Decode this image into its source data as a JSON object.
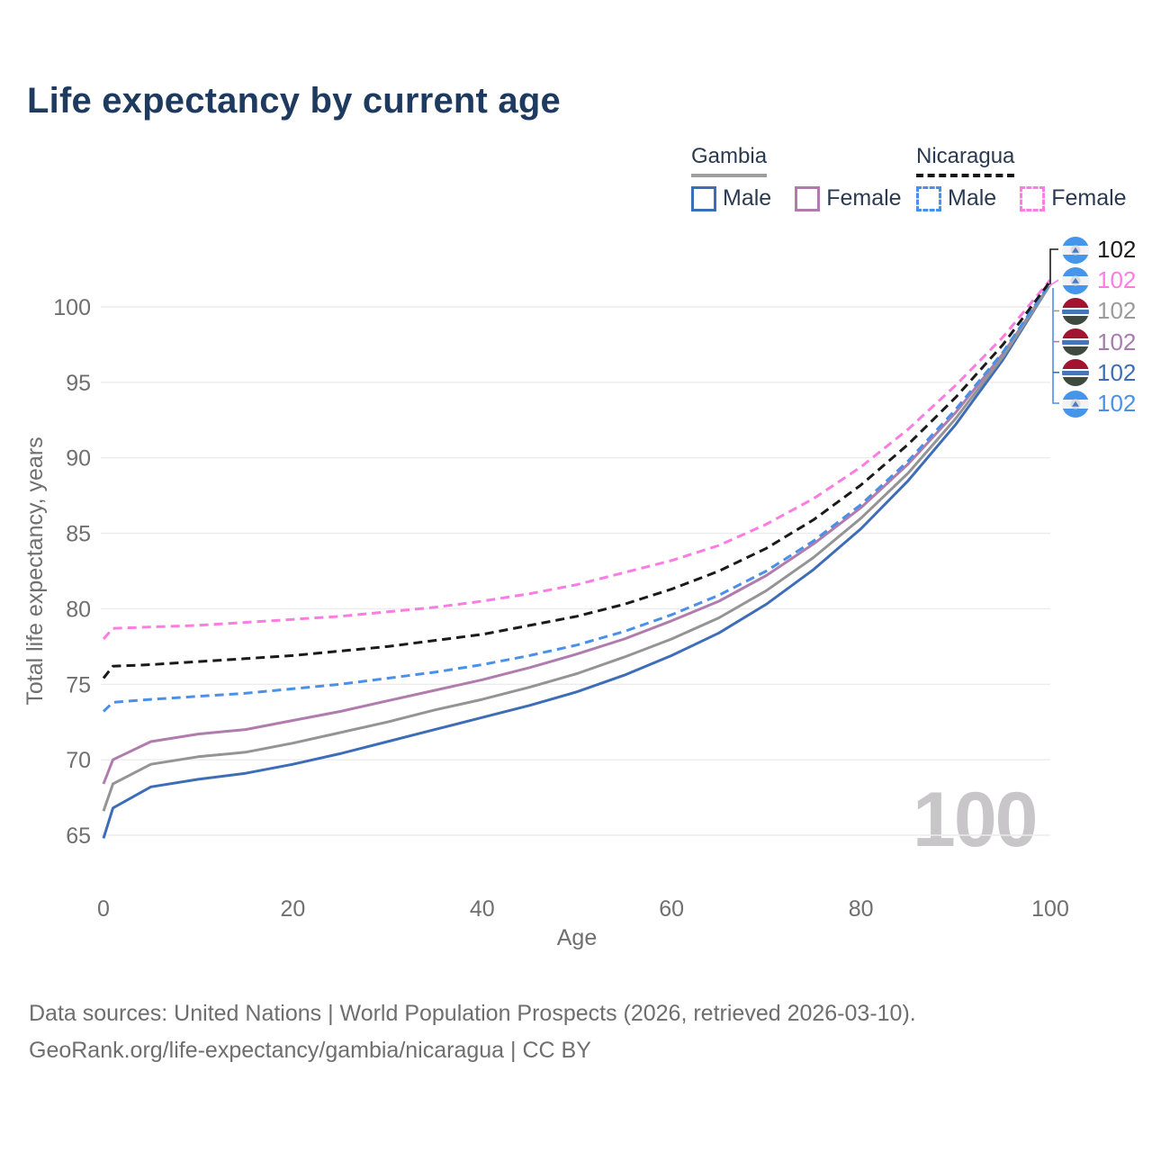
{
  "title": "Life expectancy by current age",
  "legend": {
    "groups": [
      {
        "title": "Gambia",
        "style": "solid",
        "items": [
          {
            "label": "Male",
            "color": "#3E6DB8"
          },
          {
            "label": "Female",
            "color": "#B279AE"
          }
        ]
      },
      {
        "title": "Nicaragua",
        "style": "dashed",
        "items": [
          {
            "label": "Male",
            "color": "#4A90E8"
          },
          {
            "label": "Female",
            "color": "#FC7CE2"
          }
        ]
      }
    ]
  },
  "watermark": "100",
  "footer": {
    "line1": "Data sources: United Nations | World Population Prospects (2026, retrieved 2026-03-10).",
    "line2": "GeoRank.org/life-expectancy/gambia/nicaragua | CC BY"
  },
  "colors": {
    "title": "#1E3A5F",
    "tick_labels": "#6F6F6F",
    "gridlines": "#ECECEC",
    "watermark": "#C9C6C9",
    "footer": "#6E6E6E"
  },
  "chart_data": {
    "type": "line",
    "title": "Life expectancy by current age",
    "xlabel": "Age",
    "ylabel": "Total life expectancy, years",
    "xlim": [
      0,
      100
    ],
    "ylim": [
      63,
      103
    ],
    "x_ticks": [
      0,
      20,
      40,
      60,
      80,
      100
    ],
    "y_ticks": [
      65,
      70,
      75,
      80,
      85,
      90,
      95,
      100
    ],
    "grid": "horizontal-only",
    "legend_position": "top-right",
    "x": [
      0,
      1,
      5,
      10,
      15,
      20,
      25,
      30,
      35,
      40,
      45,
      50,
      55,
      60,
      65,
      70,
      75,
      80,
      85,
      90,
      95,
      100
    ],
    "series": [
      {
        "id": "gambia-male",
        "name": "Gambia — Male",
        "country": "Gambia",
        "sex": "Male",
        "color": "#3E6DB8",
        "dash": "solid",
        "values": [
          64.8,
          66.8,
          68.2,
          68.7,
          69.1,
          69.7,
          70.4,
          71.2,
          72.0,
          72.8,
          73.6,
          74.5,
          75.6,
          76.9,
          78.4,
          80.3,
          82.6,
          85.3,
          88.5,
          92.2,
          96.5,
          101.5
        ]
      },
      {
        "id": "gambia-female",
        "name": "Gambia — Female",
        "country": "Gambia",
        "sex": "Female",
        "color": "#B07CAE",
        "dash": "solid",
        "values": [
          68.4,
          70.0,
          71.2,
          71.7,
          72.0,
          72.6,
          73.2,
          73.9,
          74.6,
          75.3,
          76.1,
          77.0,
          78.0,
          79.2,
          80.5,
          82.2,
          84.3,
          86.7,
          89.6,
          93.0,
          96.9,
          101.5
        ]
      },
      {
        "id": "gambia-both",
        "name": "Gambia — Both sexes",
        "country": "Gambia",
        "sex": "Both",
        "color": "#949494",
        "dash": "solid",
        "values": [
          66.6,
          68.4,
          69.7,
          70.2,
          70.5,
          71.1,
          71.8,
          72.5,
          73.3,
          74.0,
          74.8,
          75.7,
          76.8,
          78.0,
          79.4,
          81.2,
          83.4,
          86.0,
          89.0,
          92.6,
          96.7,
          101.5
        ]
      },
      {
        "id": "nicaragua-male",
        "name": "Nicaragua — Male",
        "country": "Nicaragua",
        "sex": "Male",
        "color": "#4A90E8",
        "dash": "dashed",
        "values": [
          73.2,
          73.8,
          74.0,
          74.2,
          74.4,
          74.7,
          75.0,
          75.4,
          75.8,
          76.3,
          76.9,
          77.6,
          78.5,
          79.6,
          80.9,
          82.5,
          84.5,
          86.9,
          89.8,
          93.2,
          97.0,
          101.6
        ]
      },
      {
        "id": "nicaragua-female",
        "name": "Nicaragua — Female",
        "country": "Nicaragua",
        "sex": "Female",
        "color": "#FC7CE2",
        "dash": "dashed",
        "values": [
          78.0,
          78.7,
          78.8,
          78.9,
          79.1,
          79.3,
          79.5,
          79.8,
          80.1,
          80.5,
          81.0,
          81.6,
          82.4,
          83.2,
          84.2,
          85.6,
          87.3,
          89.4,
          91.9,
          94.8,
          98.0,
          101.8
        ]
      },
      {
        "id": "nicaragua-both",
        "name": "Nicaragua — Both sexes",
        "country": "Nicaragua",
        "sex": "Both",
        "color": "#1A1A1A",
        "dash": "dashed",
        "values": [
          75.4,
          76.2,
          76.3,
          76.5,
          76.7,
          76.9,
          77.2,
          77.5,
          77.9,
          78.3,
          78.9,
          79.5,
          80.3,
          81.3,
          82.5,
          84.0,
          85.9,
          88.2,
          90.9,
          94.0,
          97.5,
          101.7
        ]
      }
    ],
    "end_labels": [
      {
        "flag": "nicaragua",
        "series": "nicaragua-both",
        "color": "#1A1A1A",
        "text": "102"
      },
      {
        "flag": "nicaragua",
        "series": "nicaragua-female",
        "color": "#FC7CE2",
        "text": "102"
      },
      {
        "flag": "gambia",
        "series": "gambia-both",
        "color": "#9B9B9B",
        "text": "102"
      },
      {
        "flag": "gambia",
        "series": "gambia-female",
        "color": "#A87AB0",
        "text": "102"
      },
      {
        "flag": "gambia",
        "series": "gambia-male",
        "color": "#3E6DB8",
        "text": "102"
      },
      {
        "flag": "nicaragua",
        "series": "nicaragua-male",
        "color": "#4A90E8",
        "text": "102"
      }
    ]
  }
}
